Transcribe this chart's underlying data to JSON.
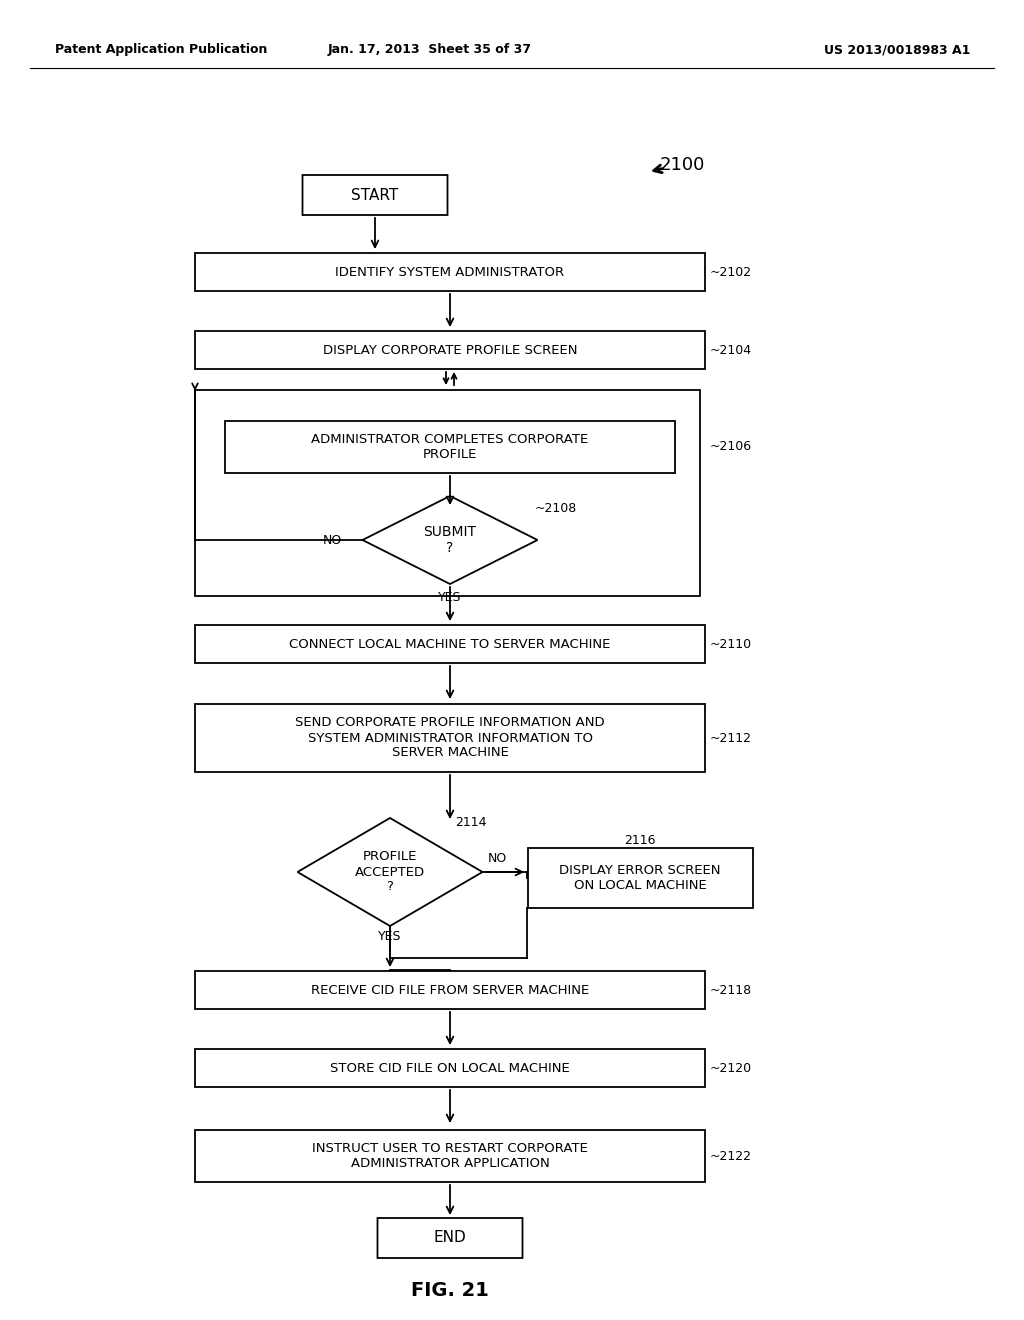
{
  "header_left": "Patent Application Publication",
  "header_mid": "Jan. 17, 2013  Sheet 35 of 37",
  "header_right": "US 2013/0018983 A1",
  "fig_label": "FIG. 21",
  "bg_color": "#ffffff"
}
